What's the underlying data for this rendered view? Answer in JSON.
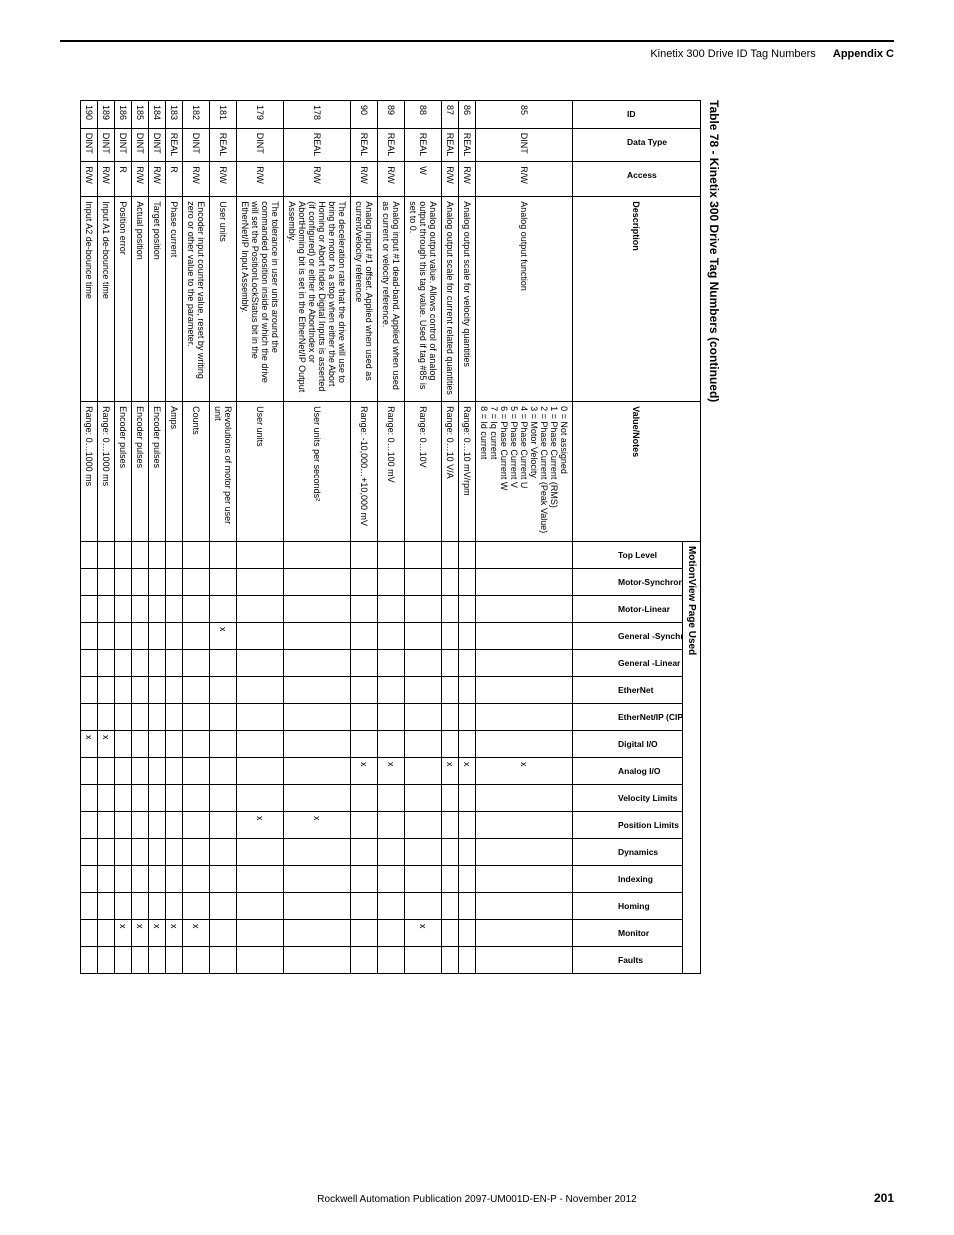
{
  "header": {
    "left": "Kinetix 300 Drive ID Tag Numbers",
    "right": "Appendix C"
  },
  "table_title": "Table 78 - Kinetix 300 Drive Tag Numbers (continued)",
  "cols": {
    "id": "ID",
    "data_type": "Data Type",
    "access": "Access",
    "description": "Description",
    "value_notes": "Value/Notes",
    "group": "MotionView Page Used",
    "pages": [
      "Top Level",
      "Motor-Synchronous",
      "Motor-Linear",
      "General -Synchronous",
      "General -Linear",
      "EtherNet",
      "EtherNet/IP (CIP)",
      "Digital I/O",
      "Analog I/O",
      "Velocity Limits",
      "Position Limits",
      "Dynamics",
      "Indexing",
      "Homing",
      "Monitor",
      "Faults"
    ]
  },
  "rows": [
    {
      "id": "85",
      "dtype": "DINT",
      "access": "R/W",
      "desc": "Analog output function",
      "val": "0 = Not assigned\n1 = Phase Current (RMS)\n2 = Phase Current (Peak Value)\n3 = Motor Velocity\n4 = Phase Current U\n5 = Phase Current V\n6 = Phase Current W\n7 = Iq current\n8 = Id current",
      "marks": {
        "Analog I/O": "x"
      }
    },
    {
      "id": "86",
      "dtype": "REAL",
      "access": "R/W",
      "desc": "Analog output scale for velocity quantities",
      "val": "Range: 0…10 mV/rpm",
      "marks": {
        "Analog I/O": "x"
      }
    },
    {
      "id": "87",
      "dtype": "REAL",
      "access": "R/W",
      "desc": "Analog output scale for current related quantities",
      "val": "Range: 0…10 V/A",
      "marks": {
        "Analog I/O": "x"
      }
    },
    {
      "id": "88",
      "dtype": "REAL",
      "access": "W",
      "desc": "Analog output value. Allows control of analog output through this tag value. Used if tag #85 is set to 0.",
      "val": "Range: 0…10V",
      "marks": {
        "Monitor": "x"
      }
    },
    {
      "id": "89",
      "dtype": "REAL",
      "access": "R/W",
      "desc": "Analog input #1 dead-band. Applied when used as current or velocity reference.",
      "val": "Range: 0…100 mV",
      "marks": {
        "Analog I/O": "x"
      }
    },
    {
      "id": "90",
      "dtype": "REAL",
      "access": "R/W",
      "desc": "Analog input #1 offset. Applied when used as current/velocity reference",
      "val": "Range: -10,000…+10,000 mV",
      "marks": {
        "Analog I/O": "x"
      }
    },
    {
      "id": "178",
      "dtype": "REAL",
      "access": "R/W",
      "desc": "The deceleration rate that the drive will use to bring the motor to a stop when either the Abort Homing or Abort Index Digital Inputs is asserted (if configured) or either the AbortIndex or AbortHoming bit is set in the EtherNet/IP Output Assembly.",
      "val": "User units per seconds²",
      "marks": {
        "Position Limits": "x"
      }
    },
    {
      "id": "179",
      "dtype": "DINT",
      "access": "R/W",
      "desc": "The tolerance in user units around the commanded position inside of which the drive will set the PositionLockStatus bit in the EtherNet/IP Input Assembly.",
      "val": "User units",
      "marks": {
        "Position Limits": "x"
      }
    },
    {
      "id": "181",
      "dtype": "REAL",
      "access": "R/W",
      "desc": "User units",
      "val": "Revolutions of motor per user unit",
      "marks": {
        "General -Synchronous": "x"
      }
    },
    {
      "id": "182",
      "dtype": "DINT",
      "access": "R/W",
      "desc": "Encoder input counter value, reset by writing zero or other value to the parameter.",
      "val": "Counts",
      "marks": {
        "Monitor": "x"
      }
    },
    {
      "id": "183",
      "dtype": "REAL",
      "access": "R",
      "desc": "Phase current",
      "val": "Amps",
      "marks": {
        "Monitor": "x"
      }
    },
    {
      "id": "184",
      "dtype": "DINT",
      "access": "R/W",
      "desc": "Target position",
      "val": "Encoder pulses",
      "marks": {
        "Monitor": "x"
      }
    },
    {
      "id": "185",
      "dtype": "DINT",
      "access": "R/W",
      "desc": "Actual position",
      "val": "Encoder pulses",
      "marks": {
        "Monitor": "x"
      }
    },
    {
      "id": "186",
      "dtype": "DINT",
      "access": "R",
      "desc": "Position error",
      "val": "Encoder pulses",
      "marks": {
        "Monitor": "x"
      }
    },
    {
      "id": "189",
      "dtype": "DINT",
      "access": "R/W",
      "desc": "Input A1 de-bounce time",
      "val": "Range: 0…1000 ms",
      "marks": {
        "Digital I/O": "x"
      }
    },
    {
      "id": "190",
      "dtype": "DINT",
      "access": "R/W",
      "desc": "Input A2 de-bounce time",
      "val": "Range: 0…1000 ms",
      "marks": {
        "Digital I/O": "x"
      }
    }
  ],
  "footer": {
    "center": "Rockwell Automation Publication 2097-UM001D-EN-P - November 2012",
    "page_num": "201"
  }
}
